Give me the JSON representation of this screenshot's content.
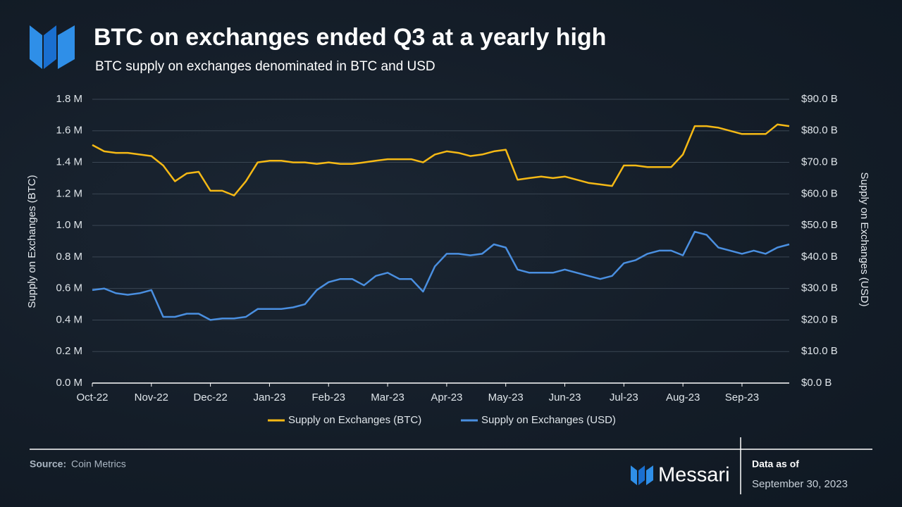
{
  "chart_data": {
    "type": "line",
    "title": "BTC on exchanges ended Q3 at a yearly high",
    "subtitle": "BTC supply on exchanges denominated in BTC and USD",
    "y_label": "Supply on Exchanges (BTC)",
    "y2_label": "Supply on Exchanges (USD)",
    "categories": [
      "Oct-22",
      null,
      null,
      null,
      null,
      "Nov-22",
      null,
      null,
      null,
      null,
      "Dec-22",
      null,
      null,
      null,
      null,
      "Jan-23",
      null,
      null,
      null,
      null,
      "Feb-23",
      null,
      null,
      null,
      null,
      "Mar-23",
      null,
      null,
      null,
      null,
      "Apr-23",
      null,
      null,
      null,
      null,
      "May-23",
      null,
      null,
      null,
      null,
      "Jun-23",
      null,
      null,
      null,
      null,
      "Jul-23",
      null,
      null,
      null,
      null,
      "Aug-23",
      null,
      null,
      null,
      null,
      "Sep-23",
      null,
      null,
      null,
      null
    ],
    "series": [
      {
        "name": "Supply on Exchanges (BTC)",
        "color": "#f5b915",
        "axis": "y",
        "values": [
          1.51,
          1.47,
          1.46,
          1.46,
          1.45,
          1.44,
          1.38,
          1.28,
          1.33,
          1.34,
          1.22,
          1.22,
          1.19,
          1.28,
          1.4,
          1.41,
          1.41,
          1.4,
          1.4,
          1.39,
          1.4,
          1.39,
          1.39,
          1.4,
          1.41,
          1.42,
          1.42,
          1.42,
          1.4,
          1.45,
          1.47,
          1.46,
          1.44,
          1.45,
          1.47,
          1.48,
          1.29,
          1.3,
          1.31,
          1.3,
          1.31,
          1.29,
          1.27,
          1.26,
          1.25,
          1.38,
          1.38,
          1.37,
          1.37,
          1.37,
          1.45,
          1.63,
          1.63,
          1.62,
          1.6,
          1.58,
          1.58,
          1.58,
          1.64,
          1.63
        ]
      },
      {
        "name": "Supply on Exchanges (USD)",
        "color": "#4a8fe0",
        "axis": "y2",
        "values": [
          29.5,
          30,
          28.5,
          28,
          28.5,
          29.5,
          21,
          21,
          22,
          22,
          20,
          20.5,
          20.5,
          21,
          23.5,
          23.5,
          23.5,
          24,
          25,
          29.5,
          32,
          33,
          33,
          31,
          34,
          35,
          33,
          33,
          29,
          37,
          41,
          41,
          40.5,
          41,
          44,
          43,
          36,
          35,
          35,
          35,
          36,
          35,
          34,
          33,
          34,
          38,
          39,
          41,
          42,
          42,
          40.5,
          48,
          47,
          43,
          42,
          41,
          42,
          41,
          43,
          44
        ]
      }
    ],
    "ylim": [
      0,
      1.8
    ],
    "yticks": [
      {
        "value": 0,
        "label": "0.0 M"
      },
      {
        "value": 0.2,
        "label": "0.2 M"
      },
      {
        "value": 0.4,
        "label": "0.4 M"
      },
      {
        "value": 0.6,
        "label": "0.6 M"
      },
      {
        "value": 0.8,
        "label": "0.8 M"
      },
      {
        "value": 1.0,
        "label": "1.0 M"
      },
      {
        "value": 1.2,
        "label": "1.2 M"
      },
      {
        "value": 1.4,
        "label": "1.4 M"
      },
      {
        "value": 1.6,
        "label": "1.6 M"
      },
      {
        "value": 1.8,
        "label": "1.8 M"
      }
    ],
    "y2lim": [
      0,
      90
    ],
    "y2ticks": [
      {
        "value": 0,
        "label": "$0.0 B"
      },
      {
        "value": 10,
        "label": "$10.0 B"
      },
      {
        "value": 20,
        "label": "$20.0 B"
      },
      {
        "value": 30,
        "label": "$30.0 B"
      },
      {
        "value": 40,
        "label": "$40.0 B"
      },
      {
        "value": 50,
        "label": "$50.0 B"
      },
      {
        "value": 60,
        "label": "$60.0 B"
      },
      {
        "value": 70,
        "label": "$70.0 B"
      },
      {
        "value": 80,
        "label": "$80.0 B"
      },
      {
        "value": 90,
        "label": "$90.0 B"
      }
    ],
    "grid": true,
    "legend": "bottom"
  },
  "footer": {
    "source_label": "Source:",
    "source": "Coin Metrics",
    "brand": "Messari",
    "data_as_of_label": "Data as of",
    "data_as_of": "September 30, 2023"
  }
}
